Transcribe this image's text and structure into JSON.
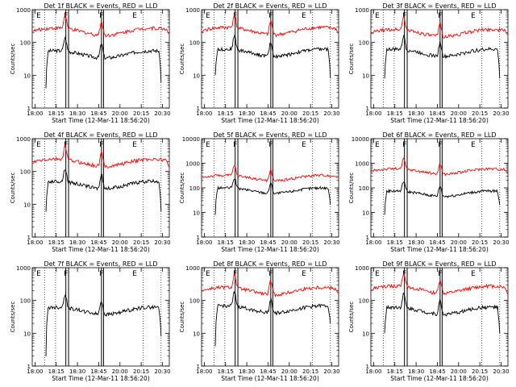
{
  "window": {
    "width": 640,
    "height": 480
  },
  "colors": {
    "events": "#000000",
    "lld": "#ff0000",
    "axes": "#000000",
    "background": "#ffffff"
  },
  "shared": {
    "xlabel": "Start Time (12-Mar-11 18:56:20)",
    "ylabel": "Counts/sec",
    "xticks": [
      "18:00",
      "18:15",
      "18:30",
      "18:45",
      "20:00",
      "20:15",
      "20:30"
    ],
    "yscale": "log",
    "marker_labels": [
      "E",
      "F",
      "F",
      "E"
    ]
  },
  "chart_data": [
    {
      "type": "line",
      "title": "Det 1f BLACK = Events, RED = LLD",
      "yticks": [
        "1",
        "10",
        "100",
        "1000"
      ],
      "ylim": [
        1,
        1000
      ],
      "series": [
        {
          "name": "Events",
          "base": 45,
          "start": 4,
          "end": 6
        },
        {
          "name": "LLD",
          "base": 220,
          "start": 220,
          "end": 180
        }
      ]
    },
    {
      "type": "line",
      "title": "Det 2f BLACK = Events, RED = LLD",
      "yticks": [
        "1",
        "10",
        "100",
        "1000"
      ],
      "ylim": [
        1,
        1000
      ],
      "series": [
        {
          "name": "Events",
          "base": 50,
          "start": 10,
          "end": 8
        },
        {
          "name": "LLD",
          "base": 230,
          "start": 200,
          "end": 200
        }
      ]
    },
    {
      "type": "line",
      "title": "Det 3f BLACK = Events, RED = LLD",
      "yticks": [
        "1",
        "10",
        "100",
        "1000"
      ],
      "ylim": [
        1,
        1000
      ],
      "series": [
        {
          "name": "Events",
          "base": 50,
          "start": 8,
          "end": 8
        },
        {
          "name": "LLD",
          "base": 200,
          "start": 180,
          "end": 170
        }
      ]
    },
    {
      "type": "line",
      "title": "Det 4f BLACK = Events, RED = LLD",
      "yticks": [
        "1",
        "10",
        "100",
        "1000"
      ],
      "ylim": [
        1,
        1000
      ],
      "series": [
        {
          "name": "Events",
          "base": 40,
          "start": 6,
          "end": 6
        },
        {
          "name": "LLD",
          "base": 190,
          "start": 170,
          "end": 130
        }
      ]
    },
    {
      "type": "line",
      "title": "Det 5f BLACK = Events, RED = LLD",
      "yticks": [
        "1",
        "10",
        "100",
        "1000",
        "10000"
      ],
      "ylim": [
        1,
        10000
      ],
      "series": [
        {
          "name": "Events",
          "base": 80,
          "start": 8,
          "end": 20
        },
        {
          "name": "LLD",
          "base": 260,
          "start": 260,
          "end": 260
        }
      ]
    },
    {
      "type": "line",
      "title": "Det 6f BLACK = Events, RED = LLD",
      "yticks": [
        "1",
        "10",
        "100",
        "1000",
        "10000"
      ],
      "ylim": [
        1,
        10000
      ],
      "series": [
        {
          "name": "Events",
          "base": 60,
          "start": 8,
          "end": 20
        },
        {
          "name": "LLD",
          "base": 480,
          "start": 480,
          "end": 420
        }
      ]
    },
    {
      "type": "line",
      "title": "Det 7f BLACK = Events, RED = LLD",
      "yticks": [
        "1",
        "10",
        "100",
        "1000"
      ],
      "ylim": [
        1,
        1000
      ],
      "series": [
        {
          "name": "Events",
          "base": 50,
          "start": 2,
          "end": 8
        }
      ]
    },
    {
      "type": "line",
      "title": "Det 8f BLACK = Events, RED = LLD",
      "yticks": [
        "1",
        "10",
        "100",
        "1000"
      ],
      "ylim": [
        1,
        1000
      ],
      "series": [
        {
          "name": "Events",
          "base": 55,
          "start": 4,
          "end": 20
        },
        {
          "name": "LLD",
          "base": 200,
          "start": 190,
          "end": 160
        }
      ]
    },
    {
      "type": "line",
      "title": "Det 9f BLACK = Events, RED = LLD",
      "yticks": [
        "1",
        "10",
        "100",
        "1000"
      ],
      "ylim": [
        1,
        1000
      ],
      "series": [
        {
          "name": "Events",
          "base": 50,
          "start": 10,
          "end": 10
        },
        {
          "name": "LLD",
          "base": 220,
          "start": 200,
          "end": 150
        }
      ]
    }
  ]
}
